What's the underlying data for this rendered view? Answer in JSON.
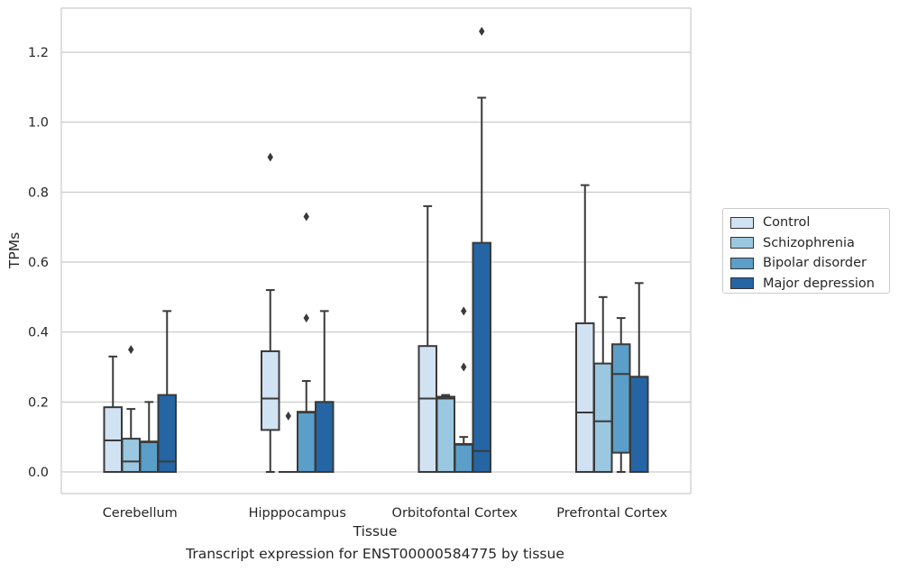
{
  "chart_data": {
    "type": "boxplot",
    "xlabel": "Tissue",
    "ylabel": "TPMs",
    "caption": "Transcript expression for ENST00000584775 by tissue",
    "ylim": [
      -0.06,
      1.32
    ],
    "yticks": [
      0.0,
      0.2,
      0.4,
      0.6,
      0.8,
      1.0,
      1.2
    ],
    "ytick_labels": [
      "0.0",
      "0.2",
      "0.4",
      "0.6",
      "0.8",
      "1.0",
      "1.2"
    ],
    "grid": true,
    "legend_placement": "right",
    "categories": [
      "Cerebellum",
      "Hipppocampus",
      "Orbitofontal Cortex",
      "Prefrontal Cortex"
    ],
    "series": [
      {
        "name": "Control",
        "color": "#d1e2f2",
        "boxes": [
          {
            "min": 0.0,
            "q1": 0.0,
            "median": 0.09,
            "q3": 0.185,
            "max": 0.33,
            "outliers": []
          },
          {
            "min": 0.0,
            "q1": 0.12,
            "median": 0.21,
            "q3": 0.345,
            "max": 0.52,
            "outliers": [
              0.9
            ]
          },
          {
            "min": 0.0,
            "q1": 0.0,
            "median": 0.21,
            "q3": 0.36,
            "max": 0.76,
            "outliers": []
          },
          {
            "min": 0.0,
            "q1": 0.0,
            "median": 0.17,
            "q3": 0.425,
            "max": 0.82,
            "outliers": []
          }
        ]
      },
      {
        "name": "Schizophrenia",
        "color": "#9ac8e0",
        "boxes": [
          {
            "min": 0.0,
            "q1": 0.0,
            "median": 0.03,
            "q3": 0.095,
            "max": 0.18,
            "outliers": [
              0.35
            ]
          },
          {
            "min": 0.0,
            "q1": 0.0,
            "median": 0.0,
            "q3": 0.0,
            "max": 0.0,
            "outliers": [
              0.16
            ]
          },
          {
            "min": 0.0,
            "q1": 0.0,
            "median": 0.21,
            "q3": 0.215,
            "max": 0.22,
            "outliers": []
          },
          {
            "min": 0.0,
            "q1": 0.0,
            "median": 0.145,
            "q3": 0.31,
            "max": 0.5,
            "outliers": []
          }
        ]
      },
      {
        "name": "Bipolar disorder",
        "color": "#5a9ec9",
        "boxes": [
          {
            "min": 0.0,
            "q1": 0.0,
            "median": 0.085,
            "q3": 0.087,
            "max": 0.2,
            "outliers": []
          },
          {
            "min": 0.0,
            "q1": 0.0,
            "median": 0.17,
            "q3": 0.172,
            "max": 0.26,
            "outliers": [
              0.44,
              0.73
            ]
          },
          {
            "min": 0.0,
            "q1": 0.0,
            "median": 0.078,
            "q3": 0.08,
            "max": 0.1,
            "outliers": [
              0.3,
              0.46
            ]
          },
          {
            "min": 0.0,
            "q1": 0.055,
            "median": 0.28,
            "q3": 0.365,
            "max": 0.44,
            "outliers": []
          }
        ]
      },
      {
        "name": "Major depression",
        "color": "#2565a3",
        "boxes": [
          {
            "min": 0.0,
            "q1": 0.0,
            "median": 0.03,
            "q3": 0.22,
            "max": 0.46,
            "outliers": []
          },
          {
            "min": 0.0,
            "q1": 0.0,
            "median": 0.2,
            "q3": 0.2,
            "max": 0.46,
            "outliers": []
          },
          {
            "min": 0.0,
            "q1": 0.0,
            "median": 0.06,
            "q3": 0.655,
            "max": 1.07,
            "outliers": [
              1.26
            ]
          },
          {
            "min": 0.0,
            "q1": 0.0,
            "median": 0.272,
            "q3": 0.272,
            "max": 0.54,
            "outliers": []
          }
        ]
      }
    ]
  }
}
